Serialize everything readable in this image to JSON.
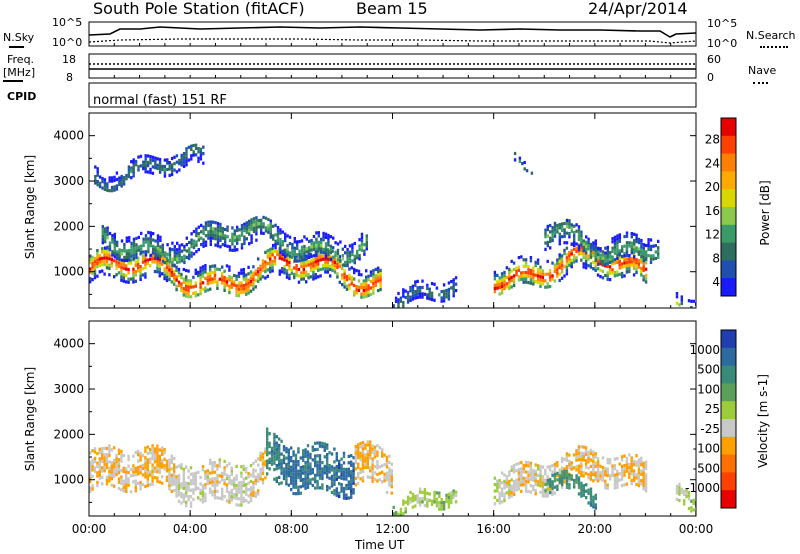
{
  "header": {
    "station_title": "South Pole Station (fitACF)",
    "beam": "Beam 15",
    "date": "24/Apr/2014"
  },
  "noise_panel": {
    "left_label": "N.Sky",
    "right_label": "N.Search",
    "left_ticks": [
      "10^5",
      "10^0"
    ],
    "right_ticks": [
      "10^5",
      "10^0"
    ]
  },
  "freq_panel": {
    "left_label_top": "Freq.",
    "left_label_bottom": "[MHz]",
    "left_ticks": [
      "18",
      "8"
    ],
    "right_ticks": [
      "60",
      "0"
    ],
    "right_label": "Nave",
    "cpid_label": "CPID",
    "mode_text": "normal (fast) 151 RF"
  },
  "power_panel": {
    "ylabel": "Slant Range [km]",
    "yticks": [
      "4000",
      "3000",
      "2000",
      "1000"
    ],
    "colorbar_label": "Power [dB]",
    "colorbar_ticks": [
      "28",
      "24",
      "20",
      "16",
      "12",
      "8",
      "4"
    ],
    "colorbar_colors": [
      "#e60000",
      "#ff4000",
      "#ff8000",
      "#ffaa00",
      "#d8d800",
      "#8cc84b",
      "#3a9a6a",
      "#2e6e5e",
      "#1f4fb0",
      "#1a1aff"
    ]
  },
  "velocity_panel": {
    "ylabel": "Slant Range [km]",
    "yticks": [
      "4000",
      "3000",
      "2000",
      "1000"
    ],
    "colorbar_label": "Velocity [m s-1]",
    "colorbar_ticks": [
      "1000",
      "500",
      "100",
      "25",
      "-25",
      "-100",
      "-500",
      "-1000"
    ],
    "colorbar_colors": [
      "#1f3fb0",
      "#2c6aa0",
      "#3a8a7a",
      "#5aa05a",
      "#9ccc3c",
      "#c8c8c8",
      "#ffa000",
      "#ff7000",
      "#ff4000",
      "#e60000"
    ]
  },
  "xaxis": {
    "ticks": [
      "00:00",
      "04:00",
      "08:00",
      "12:00",
      "16:00",
      "20:00",
      "00:00"
    ],
    "label": "Time UT"
  },
  "chart_data": [
    {
      "type": "heatmap",
      "title": "Power",
      "xlabel": "Time UT",
      "ylabel": "Slant Range [km]",
      "xlim": [
        0,
        24
      ],
      "ylim": [
        200,
        4500
      ],
      "colorbar": "Power [dB]",
      "colorbar_range": [
        0,
        30
      ],
      "bands": [
        {
          "t_start": 0.0,
          "t_end": 11.5,
          "range_center": 1000,
          "range_width": 600,
          "power_peak": 28
        },
        {
          "t_start": 0.5,
          "t_end": 11.0,
          "range_center": 1700,
          "range_width": 500,
          "power_peak": 12
        },
        {
          "t_start": 0.2,
          "t_end": 4.5,
          "range_center": 3300,
          "range_width": 400,
          "power_peak": 8
        },
        {
          "t_start": 12.0,
          "t_end": 14.5,
          "range_center": 600,
          "range_width": 400,
          "power_peak": 8
        },
        {
          "t_start": 16.0,
          "t_end": 22.0,
          "range_center": 1100,
          "range_width": 600,
          "power_peak": 28
        },
        {
          "t_start": 18.0,
          "t_end": 22.5,
          "range_center": 1700,
          "range_width": 500,
          "power_peak": 12
        },
        {
          "t_start": 16.8,
          "t_end": 17.5,
          "range_center": 3450,
          "range_width": 150,
          "power_peak": 8
        },
        {
          "t_start": 23.2,
          "t_end": 24.0,
          "range_center": 500,
          "range_width": 400,
          "power_peak": 20
        }
      ]
    },
    {
      "type": "heatmap",
      "title": "Velocity",
      "xlabel": "Time UT",
      "ylabel": "Slant Range [km]",
      "xlim": [
        0,
        24
      ],
      "ylim": [
        200,
        4500
      ],
      "colorbar": "Velocity [m s-1]",
      "colorbar_range": [
        -1000,
        1000
      ],
      "bands": [
        {
          "t_start": 0.0,
          "t_end": 7.0,
          "range_center": 1100,
          "range_width": 900,
          "velocity": -150
        },
        {
          "t_start": 7.0,
          "t_end": 10.5,
          "range_center": 1400,
          "range_width": 1000,
          "velocity": 600
        },
        {
          "t_start": 10.5,
          "t_end": 12.0,
          "range_center": 1100,
          "range_width": 900,
          "velocity": -150
        },
        {
          "t_start": 12.0,
          "t_end": 14.5,
          "range_center": 600,
          "range_width": 400,
          "velocity": 100
        },
        {
          "t_start": 16.0,
          "t_end": 22.0,
          "range_center": 1100,
          "range_width": 700,
          "velocity": -150
        },
        {
          "t_start": 18.0,
          "t_end": 20.0,
          "range_center": 800,
          "range_width": 400,
          "velocity": 500
        },
        {
          "t_start": 23.2,
          "t_end": 24.0,
          "range_center": 500,
          "range_width": 400,
          "velocity": 100
        }
      ]
    }
  ]
}
